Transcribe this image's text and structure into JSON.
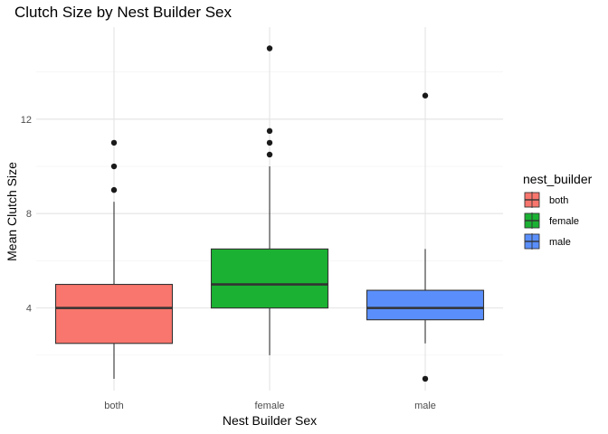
{
  "chart_data": {
    "type": "boxplot",
    "title": "Clutch Size by Nest Builder Sex",
    "xlabel": "Nest Builder Sex",
    "ylabel": "Mean Clutch Size",
    "categories": [
      "both",
      "female",
      "male"
    ],
    "ylim": [
      0.5,
      15.9
    ],
    "yticks": [
      4,
      8,
      12
    ],
    "grid": true,
    "legend": {
      "title": "nest_builder",
      "position": "right",
      "entries": [
        "both",
        "female",
        "male"
      ]
    },
    "colors": {
      "both": "#F8766D",
      "female": "#1BB233",
      "male": "#5A8FFB",
      "outline": "#333333",
      "outlier": "#1a1a1a",
      "grid_major": "#e3e3e3",
      "grid_minor": "#f2f2f2"
    },
    "series": [
      {
        "name": "both",
        "min": 1.0,
        "q1": 2.5,
        "median": 4.0,
        "q3": 5.0,
        "max": 8.5,
        "outliers": [
          9.0,
          10.0,
          11.0
        ]
      },
      {
        "name": "female",
        "min": 2.0,
        "q1": 4.0,
        "median": 5.0,
        "q3": 6.5,
        "max": 10.0,
        "outliers": [
          10.5,
          11.0,
          11.5,
          15.0
        ]
      },
      {
        "name": "male",
        "min": 2.5,
        "q1": 3.5,
        "median": 4.0,
        "q3": 4.75,
        "max": 6.5,
        "outliers": [
          1.0,
          13.0
        ]
      }
    ]
  }
}
